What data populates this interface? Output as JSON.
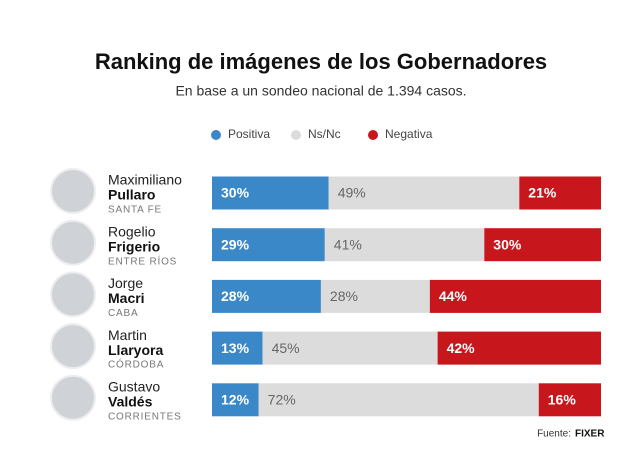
{
  "chart_data": {
    "type": "stacked-bar-horizontal",
    "title": "Ranking de imágenes de los Gobernadores",
    "subtitle": "En base a un sondeo nacional de 1.394 casos.",
    "categories": [
      {
        "first": "Maximiliano",
        "last": "Pullaro",
        "province": "SANTA FE"
      },
      {
        "first": "Rogelio",
        "last": "Frigerio",
        "province": "ENTRE RÍOS"
      },
      {
        "first": "Jorge",
        "last": "Macri",
        "province": "CABA"
      },
      {
        "first": "Martin",
        "last": "Llaryora",
        "province": "CÓRDOBA"
      },
      {
        "first": "Gustavo",
        "last": "Valdés",
        "province": "CORRIENTES"
      }
    ],
    "series": [
      {
        "name": "Positiva",
        "color": "#3b88c9",
        "values": [
          30,
          29,
          28,
          13,
          12
        ],
        "value_labels": [
          "30%",
          "29%",
          "28%",
          "13%",
          "12%"
        ]
      },
      {
        "name": "Ns/Nc",
        "color": "#dcdcdc",
        "values": [
          49,
          41,
          28,
          45,
          72
        ],
        "value_labels": [
          "49%",
          "41%",
          "28%",
          "45%",
          "72%"
        ]
      },
      {
        "name": "Negativa",
        "color": "#c8161d",
        "values": [
          21,
          30,
          44,
          42,
          16
        ],
        "value_labels": [
          "21%",
          "30%",
          "44%",
          "42%",
          "16%"
        ]
      }
    ],
    "xlim": [
      0,
      100
    ],
    "source_prefix": "Fuente:",
    "source": "FIXER"
  }
}
